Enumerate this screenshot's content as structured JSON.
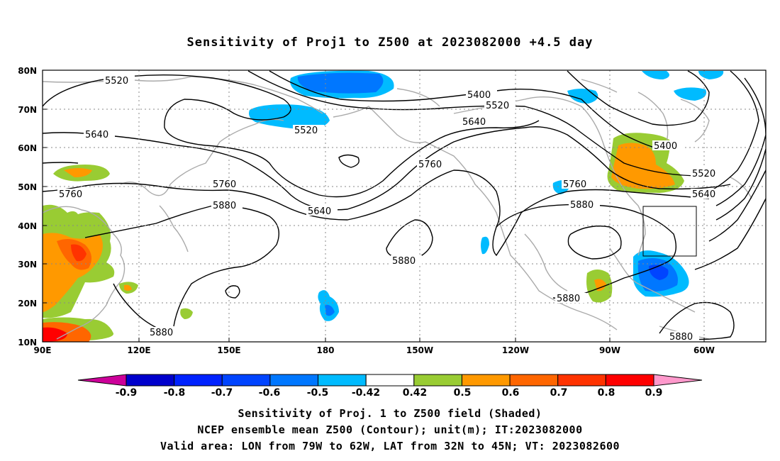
{
  "title": "Sensitivity of Proj1 to Z500 at 2023082000 +4.5 day",
  "axes": {
    "lat_labels": [
      "80N",
      "70N",
      "60N",
      "50N",
      "40N",
      "30N",
      "20N",
      "10N"
    ],
    "lon_labels": [
      "90E",
      "120E",
      "150E",
      "180",
      "150W",
      "120W",
      "90W",
      "60W"
    ]
  },
  "contour_labels": {
    "c5520_nw": "5520",
    "c5640_w": "5640",
    "c5760_w": "5760",
    "c5760_a": "5760",
    "c5880_a": "5880",
    "c5520_b": "5520",
    "c5400_a": "5400",
    "c5520_c": "5520",
    "c5640_b": "5640",
    "c5760_b": "5760",
    "c5640_c": "5640",
    "c5880_b": "5880",
    "c5880_c": "5880",
    "c5400_b": "5400",
    "c5520_d": "5520",
    "c5640_d": "5640",
    "c5760_c": "5760",
    "c5880_d": "5880",
    "c5880_e": "5880",
    "c5880_f": "5880"
  },
  "colorbar": {
    "labels": [
      "-0.9",
      "-0.8",
      "-0.7",
      "-0.6",
      "-0.5",
      "-0.42",
      "0.42",
      "0.5",
      "0.6",
      "0.7",
      "0.8",
      "0.9"
    ],
    "colors": [
      "#0000cc",
      "#0022ff",
      "#0044ff",
      "#0077ff",
      "#00bbff",
      "#ffffff",
      "#99cc33",
      "#ff9900",
      "#ff6600",
      "#ff3300",
      "#ff0000"
    ],
    "low_color": "#cc0099",
    "high_color": "#ff99cc"
  },
  "captions": {
    "line1": "Sensitivity of Proj. 1 to Z500 field (Shaded)",
    "line2": "NCEP ensemble mean Z500 (Contour); unit(m); IT:2023082000",
    "line3": "Valid area: LON from 79W to 62W, LAT from 32N to 45N; VT: 2023082600"
  }
}
